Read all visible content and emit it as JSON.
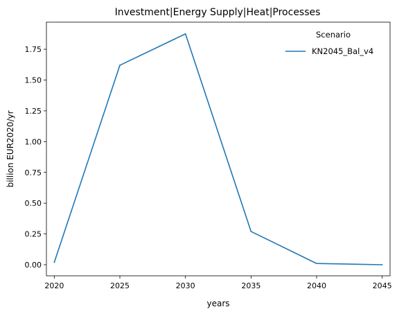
{
  "chart_data": {
    "type": "line",
    "title": "Investment|Energy Supply|Heat|Processes",
    "xlabel": "years",
    "ylabel": "billion EUR2020/yr",
    "x": [
      2020,
      2025,
      2030,
      2035,
      2040,
      2045
    ],
    "xticks": [
      "2020",
      "2025",
      "2030",
      "2035",
      "2040",
      "2045"
    ],
    "yticks": [
      "0.00",
      "0.25",
      "0.50",
      "0.75",
      "1.00",
      "1.25",
      "1.50",
      "1.75"
    ],
    "xlim": [
      2019.4,
      2045.6
    ],
    "ylim": [
      -0.09,
      1.97
    ],
    "grid": false,
    "legend": {
      "title": "Scenario",
      "placement": "top-right"
    },
    "series": [
      {
        "name": "KN2045_Bal_v4",
        "color": "#1f77b4",
        "values": [
          0.02,
          1.62,
          1.875,
          0.27,
          0.01,
          0.0
        ]
      }
    ]
  }
}
